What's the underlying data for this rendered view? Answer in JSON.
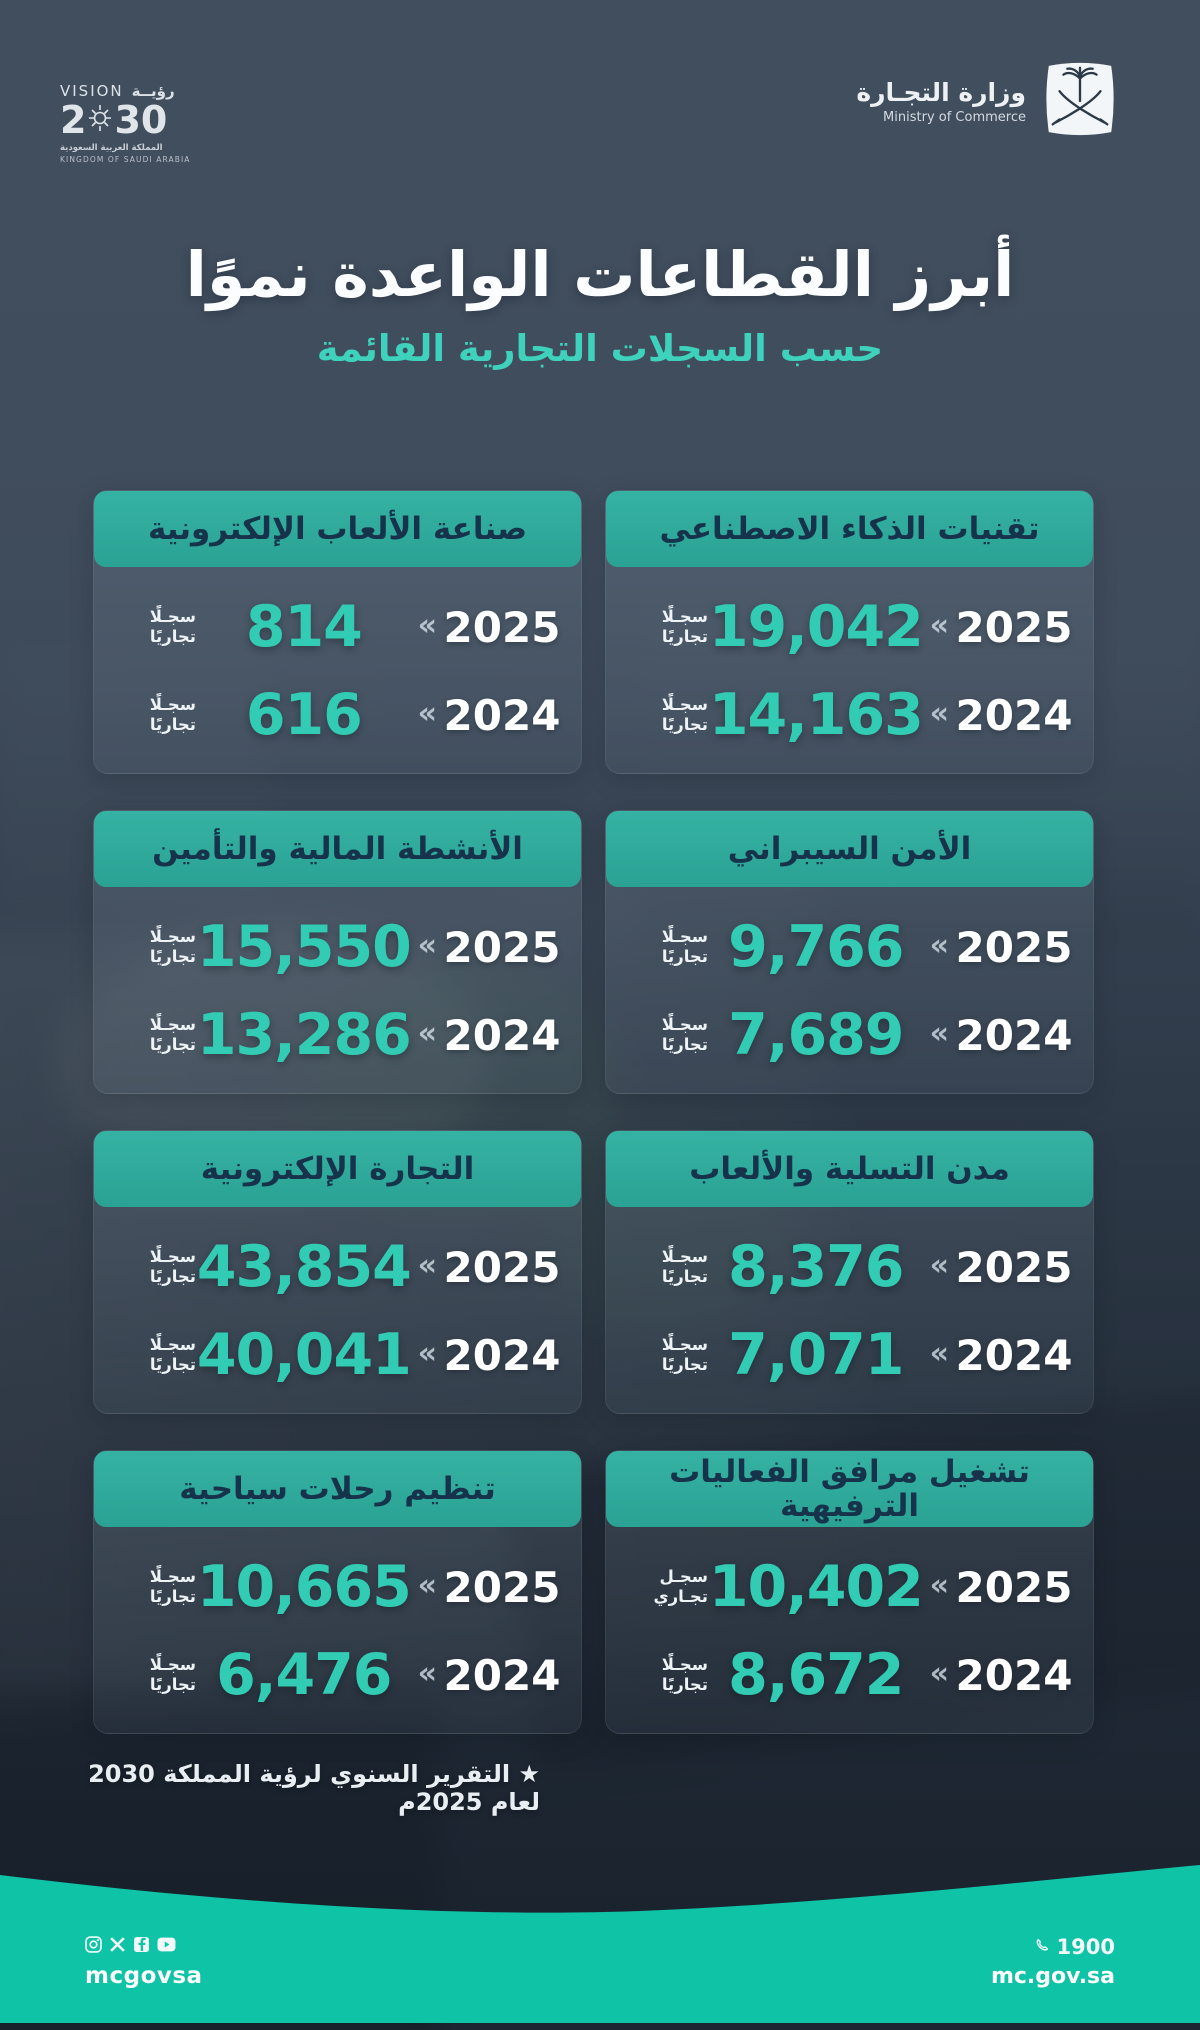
{
  "page": {
    "title": "أبرز القطاعات الواعدة نموًا",
    "subtitle": "حسب السجلات التجارية القائمة",
    "footnote": "★ التقرير السنوي لرؤية المملكة 2030 لعام 2025م"
  },
  "logos": {
    "vision2030": {
      "word_en": "VISION",
      "word_ar": "رؤيــة",
      "year_prefix": "2",
      "year_suffix": "30",
      "kingdom_ar": "المملكة العربية السعودية",
      "kingdom_en": "KINGDOM OF SAUDI ARABIA"
    },
    "ministry": {
      "name_ar": "وزارة التجـارة",
      "name_en": "Ministry of Commerce"
    }
  },
  "ui": {
    "chevron": "«"
  },
  "cards": [
    {
      "title": "تقنيات الذكاء الاصطناعي",
      "rows": [
        {
          "year": "2025",
          "value": "19,042",
          "unit": [
            "سجـلًا",
            "تجاريًا"
          ]
        },
        {
          "year": "2024",
          "value": "14,163",
          "unit": [
            "سجـلًا",
            "تجاريًا"
          ]
        }
      ]
    },
    {
      "title": "صناعة الألعاب الإلكترونية",
      "rows": [
        {
          "year": "2025",
          "value": "814",
          "unit": [
            "سجـلًا",
            "تجاريًا"
          ]
        },
        {
          "year": "2024",
          "value": "616",
          "unit": [
            "سجـلًا",
            "تجاريًا"
          ]
        }
      ]
    },
    {
      "title": "الأمن السيبراني",
      "rows": [
        {
          "year": "2025",
          "value": "9,766",
          "unit": [
            "سجـلًا",
            "تجاريًا"
          ]
        },
        {
          "year": "2024",
          "value": "7,689",
          "unit": [
            "سجـلًا",
            "تجاريًا"
          ]
        }
      ]
    },
    {
      "title": "الأنشطة المالية والتأمين",
      "rows": [
        {
          "year": "2025",
          "value": "15,550",
          "unit": [
            "سجـلًا",
            "تجاريًا"
          ]
        },
        {
          "year": "2024",
          "value": "13,286",
          "unit": [
            "سجـلًا",
            "تجاريًا"
          ]
        }
      ]
    },
    {
      "title": "مدن التسلية والألعاب",
      "rows": [
        {
          "year": "2025",
          "value": "8,376",
          "unit": [
            "سجـلًا",
            "تجاريًا"
          ]
        },
        {
          "year": "2024",
          "value": "7,071",
          "unit": [
            "سجـلًا",
            "تجاريًا"
          ]
        }
      ]
    },
    {
      "title": "التجارة الإلكترونية",
      "rows": [
        {
          "year": "2025",
          "value": "43,854",
          "unit": [
            "سجـلًا",
            "تجاريًا"
          ]
        },
        {
          "year": "2024",
          "value": "40,041",
          "unit": [
            "سجـلًا",
            "تجاريًا"
          ]
        }
      ]
    },
    {
      "title": "تشغيل مرافق الفعاليات الترفيهية",
      "rows": [
        {
          "year": "2025",
          "value": "10,402",
          "unit": [
            "سجـل",
            "تجـاري"
          ]
        },
        {
          "year": "2024",
          "value": "8,672",
          "unit": [
            "سجـلًا",
            "تجاريًا"
          ]
        }
      ]
    },
    {
      "title": "تنظيم رحلات سياحية",
      "rows": [
        {
          "year": "2025",
          "value": "10,665",
          "unit": [
            "سجـلًا",
            "تجاريًا"
          ]
        },
        {
          "year": "2024",
          "value": "6,476",
          "unit": [
            "سجـلًا",
            "تجاريًا"
          ]
        }
      ]
    }
  ],
  "footer": {
    "handle": "mcgovsa",
    "phone": "1900",
    "website": "mc.gov.sa",
    "icons": [
      "instagram-icon",
      "x-icon",
      "facebook-icon",
      "youtube-icon",
      "phone-icon"
    ]
  },
  "colors": {
    "background": "#3F4C5E",
    "card_header_teal": "#2EA89B",
    "number_teal": "#31CCB3",
    "subtitle_teal": "#3ED1BC",
    "footer_teal": "#0EC3A6",
    "card_header_text": "#16334B"
  },
  "chart_data": {
    "type": "table",
    "title": "أبرز القطاعات الواعدة نموًا",
    "subtitle": "حسب السجلات التجارية القائمة",
    "unit": "سجل تجاري (commercial registrations)",
    "categories": [
      "تقنيات الذكاء الاصطناعي",
      "صناعة الألعاب الإلكترونية",
      "الأمن السيبراني",
      "الأنشطة المالية والتأمين",
      "مدن التسلية والألعاب",
      "التجارة الإلكترونية",
      "تشغيل مرافق الفعاليات الترفيهية",
      "تنظيم رحلات سياحية"
    ],
    "series": [
      {
        "name": "2025",
        "values": [
          19042,
          814,
          9766,
          15550,
          8376,
          43854,
          10402,
          10665
        ]
      },
      {
        "name": "2024",
        "values": [
          14163,
          616,
          7689,
          13286,
          7071,
          40041,
          8672,
          6476
        ]
      }
    ],
    "source_note": "★ التقرير السنوي لرؤية المملكة 2030 لعام 2025م"
  }
}
